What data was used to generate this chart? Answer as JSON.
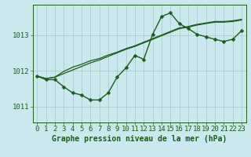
{
  "title": "Graphe pression niveau de la mer (hPa)",
  "background_color": "#cce8ef",
  "grid_color": "#aacccc",
  "line_color": "#1a5c1a",
  "xlim": [
    -0.5,
    23.5
  ],
  "ylim": [
    1010.55,
    1013.85
  ],
  "yticks": [
    1011,
    1012,
    1013
  ],
  "xticks": [
    0,
    1,
    2,
    3,
    4,
    5,
    6,
    7,
    8,
    9,
    10,
    11,
    12,
    13,
    14,
    15,
    16,
    17,
    18,
    19,
    20,
    21,
    22,
    23
  ],
  "series0": [
    1011.85,
    1011.75,
    1011.75,
    1011.55,
    1011.38,
    1011.32,
    1011.18,
    1011.18,
    1011.38,
    1011.82,
    1012.08,
    1012.43,
    1012.32,
    1013.02,
    1013.52,
    1013.62,
    1013.32,
    1013.18,
    1013.02,
    1012.95,
    1012.88,
    1012.82,
    1012.88,
    1013.12
  ],
  "series1": [
    1011.85,
    1011.78,
    1011.82,
    1011.92,
    1012.02,
    1012.12,
    1012.22,
    1012.3,
    1012.4,
    1012.5,
    1012.6,
    1012.68,
    1012.78,
    1012.88,
    1012.98,
    1013.08,
    1013.18,
    1013.22,
    1013.28,
    1013.32,
    1013.36,
    1013.36,
    1013.38,
    1013.42
  ],
  "series2": [
    1011.85,
    1011.78,
    1011.82,
    1011.98,
    1012.1,
    1012.18,
    1012.28,
    1012.34,
    1012.44,
    1012.52,
    1012.62,
    1012.7,
    1012.8,
    1012.9,
    1013.0,
    1013.1,
    1013.2,
    1013.24,
    1013.3,
    1013.34,
    1013.38,
    1013.38,
    1013.4,
    1013.44
  ],
  "tick_fontsize": 6.5,
  "title_fontsize": 7.0,
  "marker_size": 2.5,
  "linewidth_main": 1.0,
  "linewidth_trend": 0.9
}
